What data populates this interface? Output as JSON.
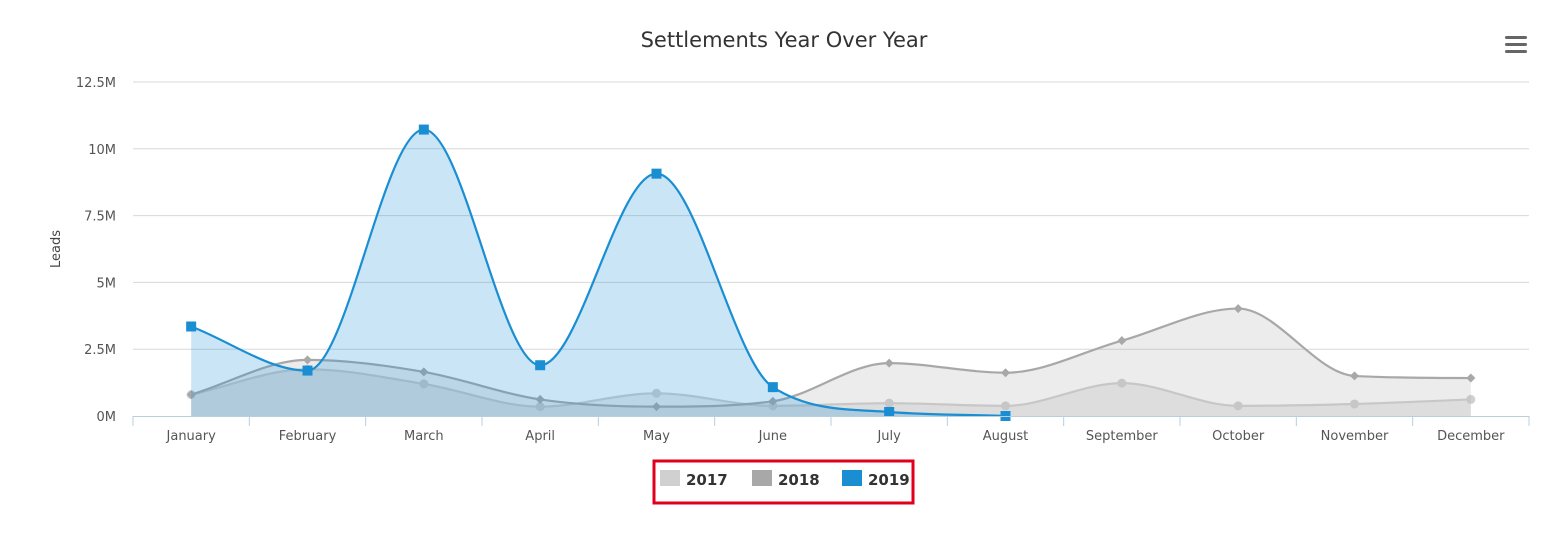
{
  "chart_data": {
    "type": "area",
    "title": "Settlements Year Over Year",
    "xlabel": "",
    "ylabel": "Leads",
    "ylim": [
      0,
      12500000
    ],
    "yticks": [
      {
        "value": 0,
        "label": "0M"
      },
      {
        "value": 2500000,
        "label": "2.5M"
      },
      {
        "value": 5000000,
        "label": "5M"
      },
      {
        "value": 7500000,
        "label": "7.5M"
      },
      {
        "value": 10000000,
        "label": "10M"
      },
      {
        "value": 12500000,
        "label": "12.5M"
      }
    ],
    "categories": [
      "January",
      "February",
      "March",
      "April",
      "May",
      "June",
      "July",
      "August",
      "September",
      "October",
      "November",
      "December"
    ],
    "grid": true,
    "legend_position": "bottom-center",
    "series": [
      {
        "name": "2017",
        "color": "#d0d0d0",
        "marker": "circle",
        "values": [
          800000,
          1750000,
          1200000,
          350000,
          850000,
          380000,
          480000,
          380000,
          1230000,
          380000,
          450000,
          620000
        ]
      },
      {
        "name": "2018",
        "color": "#a8a8a8",
        "marker": "diamond",
        "values": [
          800000,
          2100000,
          1650000,
          620000,
          350000,
          550000,
          1980000,
          1620000,
          2820000,
          4020000,
          1500000,
          1420000
        ]
      },
      {
        "name": "2019",
        "color": "#1a8ed3",
        "marker": "square",
        "values": [
          3350000,
          1700000,
          10720000,
          1900000,
          9070000,
          1080000,
          150000,
          0,
          null,
          null,
          null,
          null
        ]
      }
    ]
  },
  "menu": {
    "icon": "hamburger-menu-icon"
  }
}
